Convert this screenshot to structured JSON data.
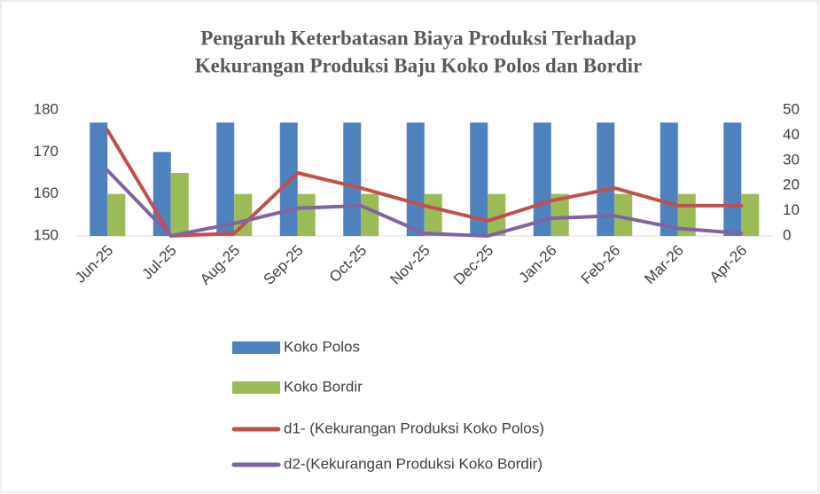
{
  "chart_data": {
    "type": "bar_line",
    "title": [
      "Pengaruh Keterbatasan Biaya Produksi Terhadap",
      "Kekurangan Produksi Baju Koko Polos dan Bordir"
    ],
    "categories": [
      "Jun-25",
      "Jul-25",
      "Aug-25",
      "Sep-25",
      "Oct-25",
      "Nov-25",
      "Dec-25",
      "Jan-26",
      "Feb-26",
      "Mar-26",
      "Apr-26"
    ],
    "series": [
      {
        "name": "Koko Polos",
        "type": "bar",
        "axis": "y",
        "color": "#4f81bd",
        "values": [
          177,
          170,
          177,
          177,
          177,
          177,
          177,
          177,
          177,
          177,
          177
        ]
      },
      {
        "name": "Koko Bordir",
        "type": "bar",
        "axis": "y",
        "color": "#9bbb59",
        "values": [
          160,
          165,
          160,
          160,
          160,
          160,
          160,
          160,
          160,
          160,
          160
        ]
      },
      {
        "name": "d1- (Kekurangan Produksi Koko Polos)",
        "type": "line",
        "axis": "y2",
        "color": "#c0504d",
        "values": [
          42,
          0,
          1,
          25,
          19,
          12,
          6,
          14,
          19,
          12,
          12
        ]
      },
      {
        "name": "d2-(Kekurangan Produksi Koko Bordir)",
        "type": "line",
        "axis": "y2",
        "color": "#8064a2",
        "values": [
          26,
          0,
          5,
          11,
          12,
          1,
          0,
          7,
          8,
          3,
          1
        ]
      }
    ],
    "ylim": [
      150,
      180
    ],
    "yticks": [
      150,
      160,
      170,
      180
    ],
    "y2lim": [
      0,
      50
    ],
    "y2ticks": [
      0,
      10,
      20,
      30,
      40,
      50
    ],
    "legend": "bottom"
  }
}
